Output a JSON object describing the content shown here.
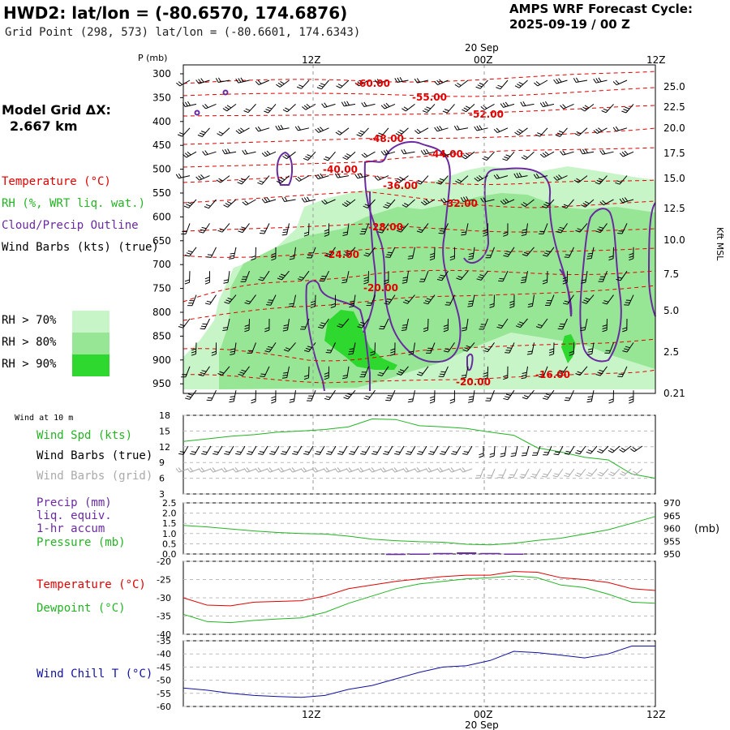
{
  "header": {
    "title": "HWD2:  lat/lon = (-80.6570, 174.6876)",
    "grid_point": "Grid Point (298, 573) lat/lon = (-80.6601, 174.6343)",
    "cycle_line1": "AMPS WRF Forecast Cycle:",
    "cycle_line2": "2025-09-19 / 00  Z"
  },
  "side": {
    "model_grid_label": "Model Grid ΔX:",
    "model_grid_value": "2.667 km"
  },
  "legend": {
    "temperature": "Temperature (°C)",
    "rh": "RH (%, WRT liq. wat.)",
    "cloud": "Cloud/Precip Outline",
    "wind": "Wind Barbs (kts) (true)",
    "rh70": "RH > 70%",
    "rh80": "RH > 80%",
    "rh90": "RH > 90%"
  },
  "colors": {
    "temperature": "#e00000",
    "rh": "#22b422",
    "cloud": "#6a2aa0",
    "wind": "#000000",
    "rh70": "#c8f5c8",
    "rh80": "#96e696",
    "rh90": "#2ed82e",
    "grid_barbs": "#aaaaaa",
    "wind_chill": "#1010a0"
  },
  "time_axis": {
    "top_labels": [
      "12Z",
      "20 Sep",
      "00Z",
      "12Z"
    ],
    "bottom_labels": [
      "12Z",
      "00Z",
      "20 Sep",
      "12Z"
    ]
  },
  "chart_data": [
    {
      "type": "cross-section",
      "ylabel": "P (mb)",
      "right_label": "Kft MSL",
      "pressure_levels": [
        300,
        350,
        400,
        450,
        500,
        550,
        600,
        650,
        700,
        750,
        800,
        850,
        900,
        950
      ],
      "kft_labels": [
        "25.0",
        "22.5",
        "20.0",
        "17.5",
        "15.0",
        "12.5",
        "10.0",
        "7.5",
        "5.0",
        "2.5",
        "0.21"
      ],
      "temperature_contours": [
        "-60.00",
        "-55.00",
        "-52.00",
        "-48.00",
        "-44.00",
        "-40.00",
        "-36.00",
        "-32.00",
        "-28.00",
        "-24.00",
        "-20.00",
        "-20.00",
        "-16.00"
      ]
    },
    {
      "type": "line",
      "panel_title": "Wind at 10 m",
      "legend": [
        "Wind Spd (kts)",
        "Wind Barbs (true)",
        "Wind Barbs (grid)"
      ],
      "y_ticks": [
        "18",
        "15",
        "12",
        "9",
        "6",
        "3"
      ],
      "ylim": [
        3,
        18
      ],
      "x_hours": [
        0,
        2,
        4,
        6,
        8,
        10,
        12,
        14,
        16,
        18,
        20,
        22,
        24,
        26,
        28,
        30,
        32,
        34,
        36,
        38,
        40
      ],
      "series": [
        {
          "name": "Wind Spd (kts)",
          "values": [
            13.0,
            13.5,
            14.0,
            14.3,
            14.8,
            15.0,
            15.3,
            15.8,
            17.3,
            17.2,
            16.0,
            15.8,
            15.5,
            14.8,
            14.2,
            11.8,
            11.0,
            10.0,
            9.5,
            6.8,
            6.0
          ]
        }
      ]
    },
    {
      "type": "line",
      "legend": [
        "Precip (mm)",
        "liq. equiv.",
        "1-hr accum",
        "Pressure (mb)"
      ],
      "y_ticks_left": [
        "2.5",
        "2.0",
        "1.5",
        "1.0",
        "0.5",
        "0.0"
      ],
      "y_ticks_right": [
        "970",
        "965",
        "960",
        "955",
        "950"
      ],
      "right_unit": "(mb)",
      "x_hours": [
        0,
        2,
        4,
        6,
        8,
        10,
        12,
        14,
        16,
        18,
        20,
        22,
        24,
        26,
        28,
        30,
        32,
        34,
        36,
        38,
        40
      ],
      "series": [
        {
          "name": "Pressure (mb)",
          "values": [
            961.2,
            960.6,
            959.8,
            959.0,
            958.4,
            958.0,
            957.8,
            957.0,
            955.8,
            955.2,
            954.8,
            954.6,
            953.8,
            953.6,
            954.2,
            955.3,
            956.2,
            957.8,
            959.5,
            962.0,
            964.7
          ]
        },
        {
          "name": "Precip (mm)",
          "values": [
            0,
            0,
            0,
            0,
            0,
            0,
            0,
            0,
            0,
            0.01,
            0.02,
            0.05,
            0.08,
            0.05,
            0.02,
            0,
            0,
            0,
            0,
            0,
            0
          ]
        }
      ]
    },
    {
      "type": "line",
      "legend": [
        "Temperature (°C)",
        "Dewpoint (°C)"
      ],
      "y_ticks": [
        "-20",
        "-25",
        "-30",
        "-35",
        "-40"
      ],
      "ylim": [
        -40,
        -20
      ],
      "x_hours": [
        0,
        2,
        4,
        6,
        8,
        10,
        12,
        14,
        16,
        18,
        20,
        22,
        24,
        26,
        28,
        30,
        32,
        34,
        36,
        38,
        40
      ],
      "series": [
        {
          "name": "Temperature (°C)",
          "values": [
            -30.0,
            -32.0,
            -32.2,
            -31.2,
            -31.0,
            -30.8,
            -29.5,
            -27.5,
            -26.5,
            -25.5,
            -24.8,
            -24.2,
            -23.8,
            -23.8,
            -22.8,
            -23.0,
            -24.5,
            -25.0,
            -25.8,
            -27.5,
            -28.0
          ]
        },
        {
          "name": "Dewpoint (°C)",
          "values": [
            -34.5,
            -36.5,
            -36.8,
            -36.2,
            -35.8,
            -35.5,
            -34.0,
            -31.5,
            -29.5,
            -27.5,
            -26.2,
            -25.5,
            -24.8,
            -24.5,
            -24.0,
            -24.5,
            -26.5,
            -27.2,
            -29.0,
            -31.2,
            -31.5
          ]
        }
      ]
    },
    {
      "type": "line",
      "legend": [
        "Wind Chill T (°C)"
      ],
      "y_ticks": [
        "-35",
        "-40",
        "-45",
        "-50",
        "-55",
        "-60"
      ],
      "ylim": [
        -60,
        -35
      ],
      "x_hours": [
        0,
        2,
        4,
        6,
        8,
        10,
        12,
        14,
        16,
        18,
        20,
        22,
        24,
        26,
        28,
        30,
        32,
        34,
        36,
        38,
        40
      ],
      "series": [
        {
          "name": "Wind Chill T (°C)",
          "values": [
            -53.0,
            -53.8,
            -55.0,
            -55.8,
            -56.2,
            -56.5,
            -55.8,
            -53.5,
            -52.0,
            -49.5,
            -47.0,
            -45.0,
            -44.5,
            -42.5,
            -39.0,
            -39.5,
            -40.5,
            -41.5,
            -40.0,
            -37.0,
            -37.0
          ]
        }
      ]
    }
  ]
}
